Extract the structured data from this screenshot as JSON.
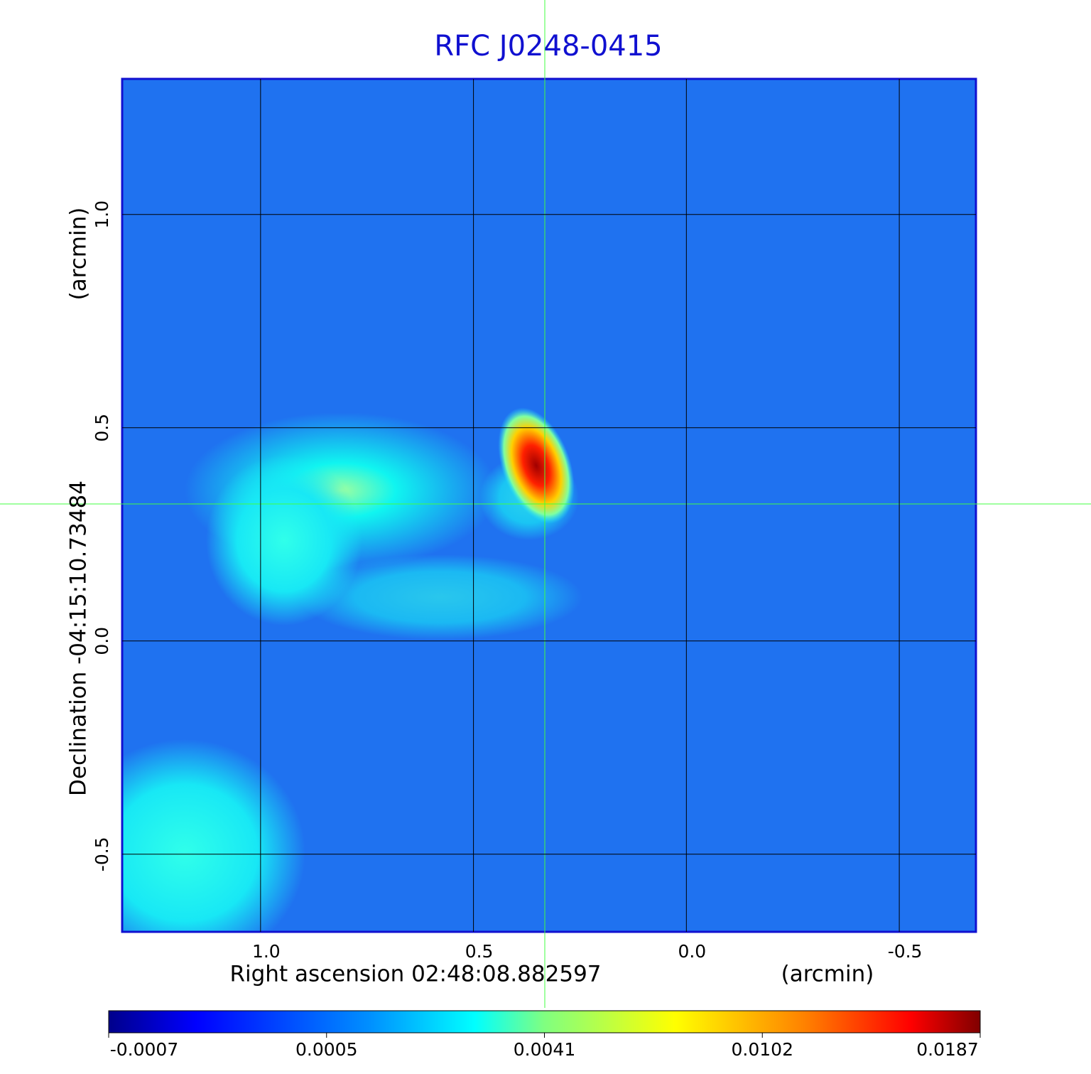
{
  "chart_data": {
    "type": "image",
    "title": "RFC J0248-0415",
    "x_label": "Right ascension  02:48:08.882597",
    "x_unit": "(arcmin)",
    "y_label": "Declination  -04:15:10.73484",
    "y_unit": "(arcmin)",
    "xlim": [
      1.325,
      -0.68
    ],
    "ylim": [
      -0.682,
      1.318
    ],
    "xticks": [
      {
        "value": 1,
        "label": "1.0"
      },
      0.5,
      {
        "value": 0,
        "label": "0.0"
      },
      -0.5
    ],
    "yticks": [
      {
        "value": 1,
        "label": "1.0"
      },
      0.5,
      {
        "value": 0,
        "label": "0.0"
      },
      -0.5
    ],
    "grid": true,
    "colorbar_ticks": [
      -0.0007,
      0.0005,
      0.0041,
      0.0102,
      0.0187
    ]
  }
}
